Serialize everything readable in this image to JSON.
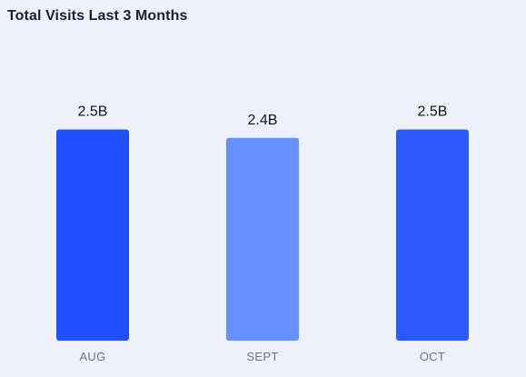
{
  "chart_data": {
    "type": "bar",
    "title": "Total Visits Last 3 Months",
    "categories": [
      "AUG",
      "SEPT",
      "OCT"
    ],
    "values": [
      2.5,
      2.4,
      2.5
    ],
    "value_labels": [
      "2.5B",
      "2.4B",
      "2.5B"
    ],
    "unit": "B",
    "bar_colors": [
      "#2150ff",
      "#6690ff",
      "#2b58ff"
    ],
    "grid": false,
    "legend": "none"
  }
}
